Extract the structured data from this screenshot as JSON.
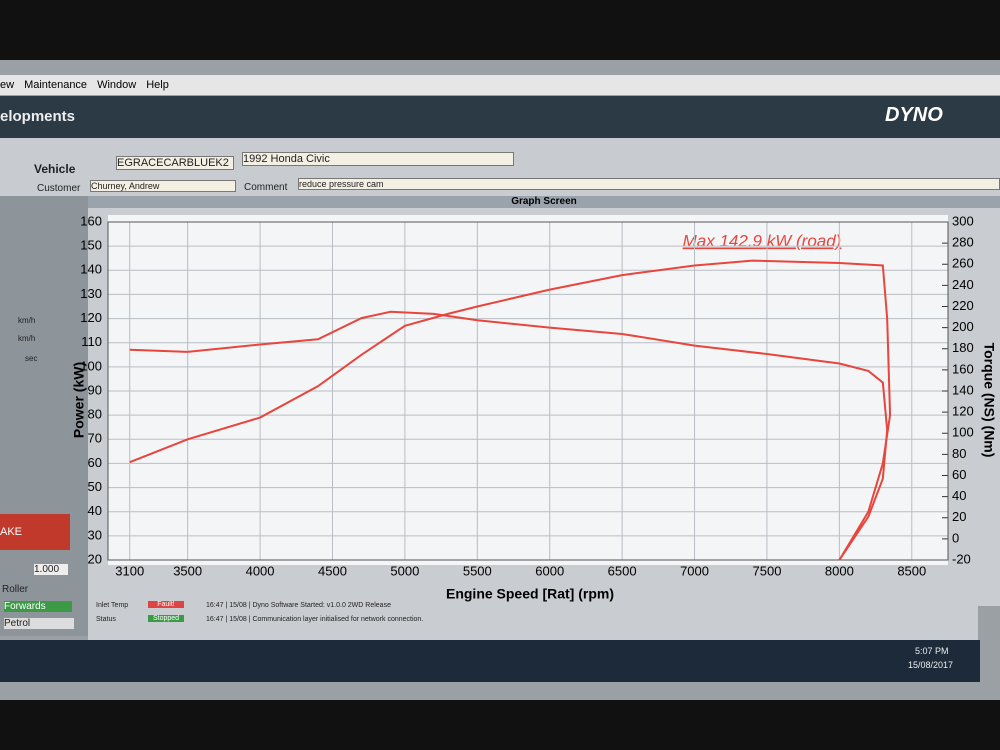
{
  "menu": [
    "ew",
    "Maintenance",
    "Window",
    "Help"
  ],
  "app_title": "elopments",
  "logo": "DYNO",
  "vehicle": {
    "label": "Vehicle",
    "id": "EGRACECARBLUEK2",
    "model": "1992 Honda Civic",
    "customer_label": "Customer",
    "customer": "Churney, Andrew",
    "comment_label": "Comment",
    "comment": "reduce pressure cam"
  },
  "panel_title": "Graph Screen",
  "side": {
    "units": [
      "km/h",
      "km/h",
      "sec"
    ],
    "ratio": "1.000",
    "roller": "Roller",
    "direction": "Forwards",
    "fuel": "Petrol",
    "button": "AKE"
  },
  "status": {
    "inlet_label": "Inlet Temp",
    "inlet": "Fault!",
    "status_label": "Status",
    "status": "Stopped",
    "log": [
      "16:47 | 15/08 | Dyno Software Started: v1.0.0 2WD Release",
      "16:47 | 15/08 | Communication layer initialised for network connection."
    ]
  },
  "clock": {
    "time": "5:07 PM",
    "date": "15/08/2017"
  },
  "chart_data": {
    "type": "line",
    "annotation": "Max 142.9 kW (road)",
    "x_label": "Engine Speed [Rat] (rpm)",
    "y_label": "Power (kW)",
    "y2_label": "Torque (NS) (Nm)",
    "grid": true,
    "xlim": [
      2950,
      8750
    ],
    "xticks": [
      3100,
      3500,
      4000,
      4500,
      5000,
      5500,
      6000,
      6500,
      7000,
      7500,
      8000,
      8500
    ],
    "ylim": [
      20,
      160
    ],
    "yticks": [
      20,
      30,
      40,
      50,
      60,
      70,
      80,
      90,
      100,
      110,
      120,
      130,
      140,
      150,
      160
    ],
    "y2lim": [
      -20,
      300
    ],
    "y2ticks": [
      300,
      280,
      260,
      240,
      220,
      200,
      180,
      160,
      140,
      120,
      100,
      80,
      60,
      40,
      20,
      0,
      -20
    ],
    "series": [
      {
        "axis": "y",
        "color": "#e8453c",
        "x": [
          3100,
          3500,
          4000,
          4400,
          4700,
          5000,
          5300,
          5500,
          6000,
          6500,
          7000,
          7400,
          8000,
          8300,
          8330,
          8350,
          8300,
          8200,
          8000
        ],
        "values": [
          60.5,
          70,
          79,
          92,
          105,
          117,
          122,
          125,
          132,
          138,
          142,
          144,
          143,
          142,
          120,
          80,
          60,
          40,
          20
        ]
      },
      {
        "axis": "y2",
        "color": "#e8453c",
        "x": [
          3100,
          3500,
          4000,
          4400,
          4700,
          4900,
          5200,
          5500,
          6000,
          6500,
          7000,
          7500,
          8000,
          8200,
          8300,
          8330,
          8300,
          8200,
          8000
        ],
        "values": [
          179,
          177,
          184,
          189,
          209,
          215,
          213,
          207,
          200,
          194,
          183,
          175,
          166,
          159,
          148,
          103,
          57,
          21,
          -20
        ]
      }
    ]
  }
}
